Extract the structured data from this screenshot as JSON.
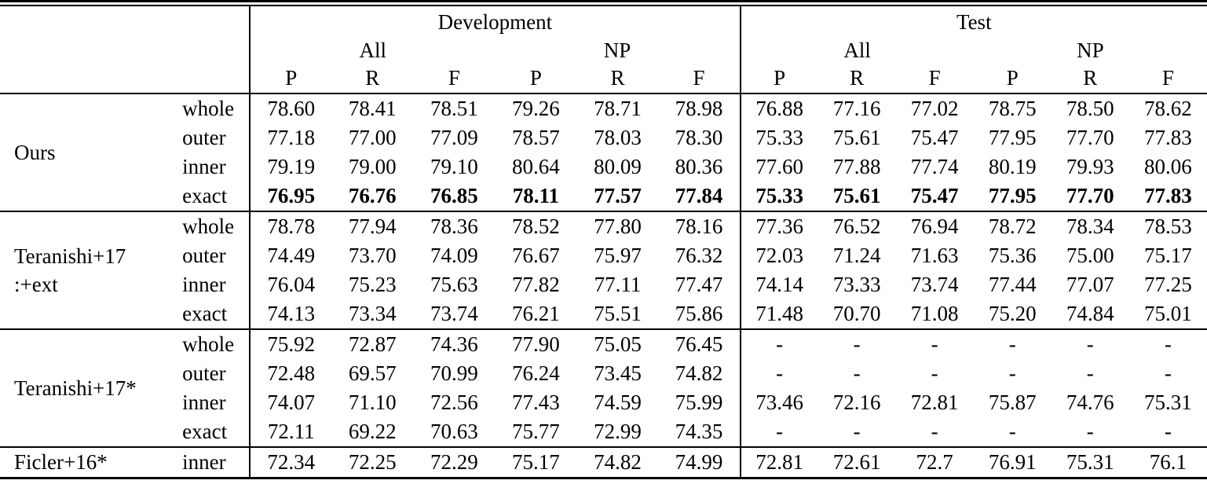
{
  "table": {
    "sections": [
      {
        "label": "Development"
      },
      {
        "label": "Test"
      }
    ],
    "subheaders": [
      "All",
      "NP",
      "All",
      "NP"
    ],
    "metrics": [
      "P",
      "R",
      "F",
      "P",
      "R",
      "F",
      "P",
      "R",
      "F",
      "P",
      "R",
      "F"
    ],
    "groups": [
      {
        "name": "Ours",
        "rows": [
          {
            "label": "whole",
            "bold": false,
            "values": [
              "78.60",
              "78.41",
              "78.51",
              "79.26",
              "78.71",
              "78.98",
              "76.88",
              "77.16",
              "77.02",
              "78.75",
              "78.50",
              "78.62"
            ]
          },
          {
            "label": "outer",
            "bold": false,
            "values": [
              "77.18",
              "77.00",
              "77.09",
              "78.57",
              "78.03",
              "78.30",
              "75.33",
              "75.61",
              "75.47",
              "77.95",
              "77.70",
              "77.83"
            ]
          },
          {
            "label": "inner",
            "bold": false,
            "values": [
              "79.19",
              "79.00",
              "79.10",
              "80.64",
              "80.09",
              "80.36",
              "77.60",
              "77.88",
              "77.74",
              "80.19",
              "79.93",
              "80.06"
            ]
          },
          {
            "label": "exact",
            "bold": true,
            "values": [
              "76.95",
              "76.76",
              "76.85",
              "78.11",
              "77.57",
              "77.84",
              "75.33",
              "75.61",
              "75.47",
              "77.95",
              "77.70",
              "77.83"
            ]
          }
        ]
      },
      {
        "name": "Teranishi+17\n:+ext",
        "rows": [
          {
            "label": "whole",
            "bold": false,
            "values": [
              "78.78",
              "77.94",
              "78.36",
              "78.52",
              "77.80",
              "78.16",
              "77.36",
              "76.52",
              "76.94",
              "78.72",
              "78.34",
              "78.53"
            ]
          },
          {
            "label": "outer",
            "bold": false,
            "values": [
              "74.49",
              "73.70",
              "74.09",
              "76.67",
              "75.97",
              "76.32",
              "72.03",
              "71.24",
              "71.63",
              "75.36",
              "75.00",
              "75.17"
            ]
          },
          {
            "label": "inner",
            "bold": false,
            "values": [
              "76.04",
              "75.23",
              "75.63",
              "77.82",
              "77.11",
              "77.47",
              "74.14",
              "73.33",
              "73.74",
              "77.44",
              "77.07",
              "77.25"
            ]
          },
          {
            "label": "exact",
            "bold": false,
            "values": [
              "74.13",
              "73.34",
              "73.74",
              "76.21",
              "75.51",
              "75.86",
              "71.48",
              "70.70",
              "71.08",
              "75.20",
              "74.84",
              "75.01"
            ]
          }
        ]
      },
      {
        "name": "Teranishi+17*",
        "rows": [
          {
            "label": "whole",
            "bold": false,
            "values": [
              "75.92",
              "72.87",
              "74.36",
              "77.90",
              "75.05",
              "76.45",
              "-",
              "-",
              "-",
              "-",
              "-",
              "-"
            ]
          },
          {
            "label": "outer",
            "bold": false,
            "values": [
              "72.48",
              "69.57",
              "70.99",
              "76.24",
              "73.45",
              "74.82",
              "-",
              "-",
              "-",
              "-",
              "-",
              "-"
            ]
          },
          {
            "label": "inner",
            "bold": false,
            "values": [
              "74.07",
              "71.10",
              "72.56",
              "77.43",
              "74.59",
              "75.99",
              "73.46",
              "72.16",
              "72.81",
              "75.87",
              "74.76",
              "75.31"
            ]
          },
          {
            "label": "exact",
            "bold": false,
            "values": [
              "72.11",
              "69.22",
              "70.63",
              "75.77",
              "72.99",
              "74.35",
              "-",
              "-",
              "-",
              "-",
              "-",
              "-"
            ]
          }
        ]
      },
      {
        "name": "Ficler+16*",
        "rows": [
          {
            "label": "inner",
            "bold": false,
            "values": [
              "72.34",
              "72.25",
              "72.29",
              "75.17",
              "74.82",
              "74.99",
              "72.81",
              "72.61",
              "72.7",
              "76.91",
              "75.31",
              "76.1"
            ]
          }
        ]
      }
    ]
  }
}
